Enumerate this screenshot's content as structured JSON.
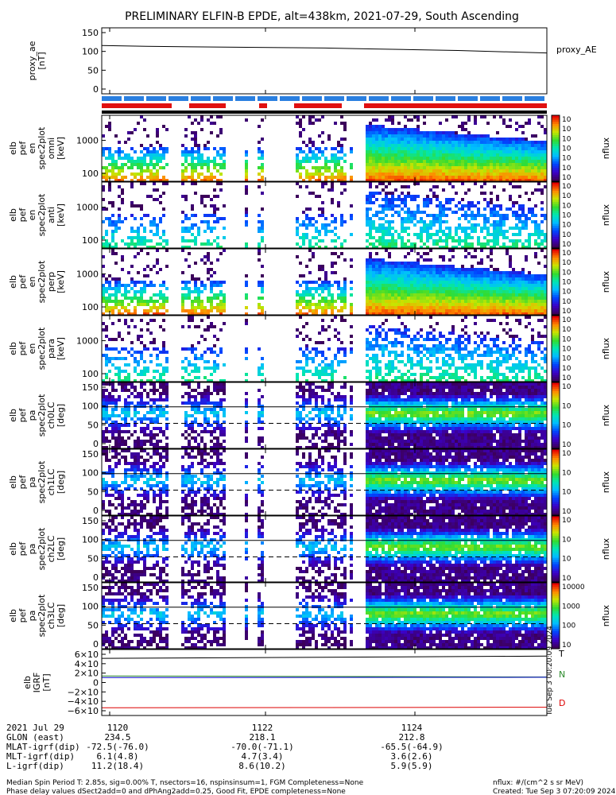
{
  "title": "PRELIMINARY ELFIN-B EPDE, alt=438km, 2021-07-29, South Ascending",
  "colors": {
    "tplot_blue": "#2a7fe0",
    "tplot_red": "#e01010",
    "bx": "#000000",
    "by": "#2a8a2a",
    "bz": "#0000cc",
    "bd": "#dd0000"
  },
  "chart_data": {
    "type": "heatmap",
    "time_ticks": [
      "1120",
      "1122",
      "1124"
    ],
    "panels": [
      {
        "kind": "line",
        "ylabel": [
          "proxy_ae",
          "[nT]"
        ],
        "yticks": [
          "150",
          "100",
          "50",
          "0"
        ],
        "ylim": [
          -5,
          155
        ],
        "legend": "proxy_AE",
        "x": [
          0,
          0.1,
          0.2,
          0.3,
          0.4,
          0.5,
          0.6,
          0.7,
          0.8,
          0.9,
          1.0
        ],
        "y": [
          112,
          110,
          109,
          108,
          107,
          106,
          104,
          102,
          100,
          97,
          94
        ]
      },
      {
        "kind": "spec",
        "ylabel": [
          "elb",
          "pef",
          "en",
          "spec2plot",
          "omni",
          "[keV]"
        ],
        "yticks": [
          "1000",
          "100"
        ],
        "unit": "nflux",
        "cb_ticks": [
          "10<sup>7</sup>",
          "10<sup>6</sup>",
          "10<sup>5</sup>",
          "10<sup>4</sup>",
          "10<sup>3</sup>",
          "10<sup>2</sup>",
          "10<sup>1</sup>"
        ]
      },
      {
        "kind": "spec",
        "ylabel": [
          "elb",
          "pef",
          "en",
          "spec2plot",
          "anti",
          "[keV]"
        ],
        "yticks": [
          "1000",
          "100"
        ],
        "unit": "nflux",
        "cb_ticks": [
          "10<sup>7</sup>",
          "10<sup>6</sup>",
          "10<sup>5</sup>",
          "10<sup>4</sup>",
          "10<sup>3</sup>",
          "10<sup>2</sup>",
          "10<sup>1</sup>"
        ]
      },
      {
        "kind": "spec",
        "ylabel": [
          "elb",
          "pef",
          "en",
          "spec2plot",
          "perp",
          "[keV]"
        ],
        "yticks": [
          "1000",
          "100"
        ],
        "unit": "nflux",
        "cb_ticks": [
          "10<sup>7</sup>",
          "10<sup>6</sup>",
          "10<sup>5</sup>",
          "10<sup>4</sup>",
          "10<sup>3</sup>",
          "10<sup>2</sup>",
          "10<sup>1</sup>"
        ]
      },
      {
        "kind": "spec",
        "ylabel": [
          "elb",
          "pef",
          "en",
          "spec2plot",
          "para",
          "[keV]"
        ],
        "yticks": [
          "1000",
          "100"
        ],
        "unit": "nflux",
        "cb_ticks": [
          "10<sup>7</sup>",
          "10<sup>6</sup>",
          "10<sup>5</sup>",
          "10<sup>4</sup>",
          "10<sup>3</sup>",
          "10<sup>2</sup>",
          "10<sup>1</sup>"
        ]
      },
      {
        "kind": "spec",
        "ylabel": [
          "elb",
          "pef",
          "pa",
          "spec2plot",
          "ch0LC",
          "[deg]"
        ],
        "yticks": [
          "150",
          "100",
          "50",
          "0"
        ],
        "unit": "nflux",
        "cb_ticks": [
          "10<sup>7</sup>",
          "10<sup>6</sup>",
          "10<sup>5</sup>",
          "10<sup>4</sup>"
        ]
      },
      {
        "kind": "spec",
        "ylabel": [
          "elb",
          "pef",
          "pa",
          "spec2plot",
          "ch1LC",
          "[deg]"
        ],
        "yticks": [
          "150",
          "100",
          "50",
          "0"
        ],
        "unit": "nflux",
        "cb_ticks": [
          "10<sup>6</sup>",
          "10<sup>5</sup>",
          "10<sup>4</sup>",
          "10<sup>3</sup>"
        ]
      },
      {
        "kind": "spec",
        "ylabel": [
          "elb",
          "pef",
          "pa",
          "spec2plot",
          "ch2LC",
          "[deg]"
        ],
        "yticks": [
          "150",
          "100",
          "50",
          "0"
        ],
        "unit": "nflux",
        "cb_ticks": [
          "10<sup>5</sup>",
          "10<sup>4</sup>",
          "10<sup>3</sup>",
          "10<sup>2</sup>"
        ]
      },
      {
        "kind": "spec",
        "ylabel": [
          "elb",
          "pef",
          "pa",
          "spec2plot",
          "ch3LC",
          "[deg]"
        ],
        "yticks": [
          "150",
          "100",
          "50",
          "0"
        ],
        "unit": "nflux",
        "cb_ticks": [
          "10000",
          "1000",
          "100",
          "10"
        ]
      },
      {
        "kind": "lines",
        "ylabel": [
          "elb",
          "IGRF",
          "[nT]"
        ],
        "yticks": [
          "6×10<sup>4</sup>",
          "4×10<sup>4</sup>",
          "2×10<sup>4</sup>",
          "0",
          "−2×10<sup>4</sup>",
          "−4×10<sup>4</sup>",
          "−6×10<sup>4</sup>"
        ],
        "ylim": [
          -60000,
          60000
        ],
        "legend": [
          "T",
          "N",
          "D"
        ],
        "series": [
          {
            "name": "T",
            "x": [
              0,
              0.5,
              1.0
            ],
            "y": [
              44000,
              46000,
              48000
            ]
          },
          {
            "name": "N",
            "x": [
              0,
              0.5,
              1.0
            ],
            "y": [
              12000,
              11000,
              10000
            ]
          },
          {
            "name": "D",
            "x": [
              0,
              0.5,
              1.0
            ],
            "y": [
              -46000,
              -45500,
              -45000
            ]
          }
        ]
      }
    ]
  },
  "created_stamp": "Tue Sep  3 00:20:09 2024",
  "footer": {
    "rows": [
      {
        "label": "2021 Jul 29",
        "v": [
          "1120",
          "1122",
          "1124"
        ]
      },
      {
        "label": "GLON (east)",
        "v": [
          "234.5",
          "218.1",
          "212.8"
        ]
      },
      {
        "label": "MLAT-igrf(dip)",
        "v": [
          "-72.5(-76.0)",
          "-70.0(-71.1)",
          "-65.5(-64.9)"
        ]
      },
      {
        "label": "MLT-igrf(dip)",
        "v": [
          "6.1(4.8)",
          "4.7(3.4)",
          "3.6(2.6)"
        ]
      },
      {
        "label": "L-igrf(dip)",
        "v": [
          "11.2(18.4)",
          "8.6(10.2)",
          "5.9(5.9)"
        ]
      }
    ],
    "note1": "Median Spin Period T: 2.85s, sig=0.00% T, nsectors=16, nspinsinsum=1, FGM Completeness=None",
    "note2": "Phase delay values dSect2add=0 and dPhAng2add=0.25, Good Fit, EPDE completeness=None",
    "unit_note": "nflux: #/(cm^2 s sr MeV)",
    "created": "Created: Tue Sep  3 07:20:09 2024"
  }
}
